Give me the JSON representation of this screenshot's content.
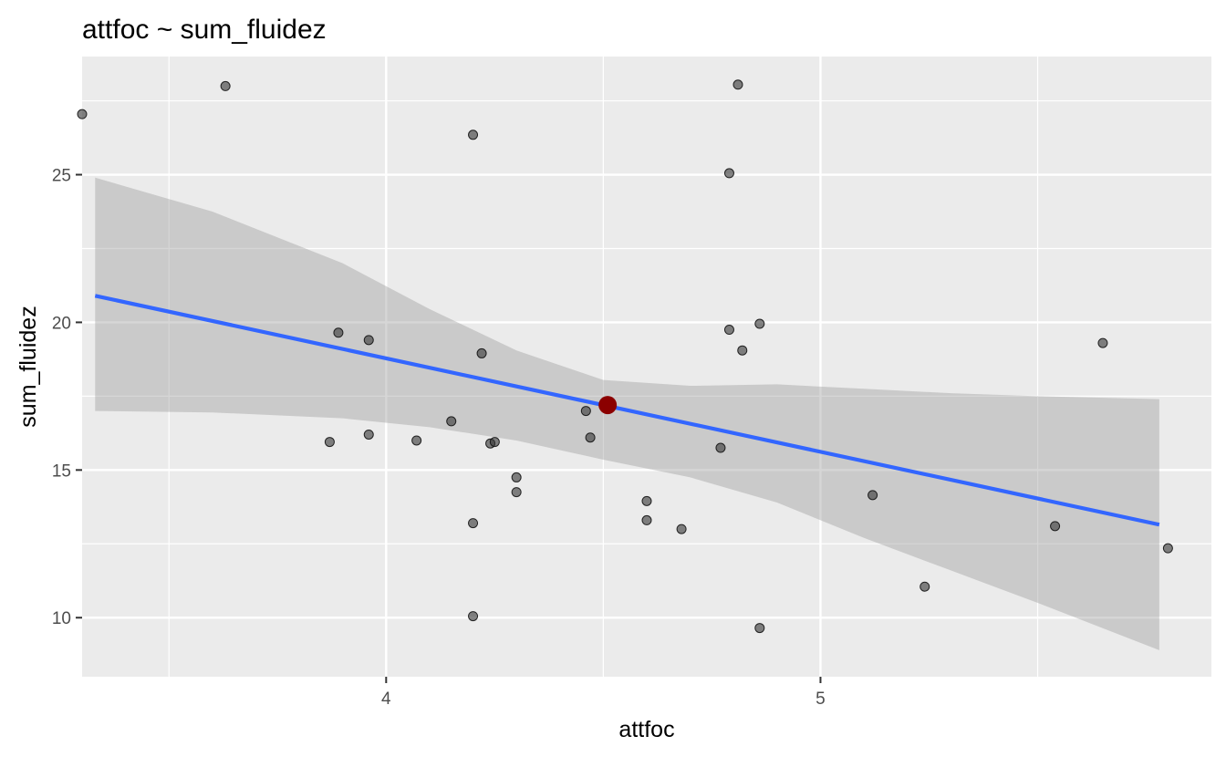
{
  "chart_data": {
    "type": "scatter",
    "title": "attfoc ~ sum_fluidez",
    "xlabel": "attfoc",
    "ylabel": "sum_fluidez",
    "xlim": [
      3.3,
      5.9
    ],
    "ylim": [
      8.0,
      29.0
    ],
    "x_ticks": [
      4,
      5
    ],
    "x_tick_labels": [
      "4",
      "5"
    ],
    "x_minor_ticks": [
      3.5,
      4.5,
      5.5
    ],
    "y_ticks": [
      10,
      15,
      20,
      25
    ],
    "y_tick_labels": [
      "10",
      "15",
      "20",
      "25"
    ],
    "y_minor_ticks": [
      12.5,
      17.5,
      22.5,
      27.5
    ],
    "grid": true,
    "background_color": "#ebebeb",
    "point_color": "#333333",
    "point_alpha": 0.6,
    "points": [
      [
        3.3,
        27.05
      ],
      [
        3.63,
        28.0
      ],
      [
        4.2,
        26.35
      ],
      [
        4.81,
        28.05
      ],
      [
        4.79,
        25.05
      ],
      [
        3.89,
        19.65
      ],
      [
        3.96,
        19.4
      ],
      [
        4.22,
        18.95
      ],
      [
        4.79,
        19.75
      ],
      [
        4.86,
        19.95
      ],
      [
        4.82,
        19.05
      ],
      [
        5.65,
        19.3
      ],
      [
        4.15,
        16.65
      ],
      [
        4.46,
        17.0
      ],
      [
        4.47,
        16.1
      ],
      [
        3.87,
        15.95
      ],
      [
        3.96,
        16.2
      ],
      [
        4.07,
        16.0
      ],
      [
        4.24,
        15.9
      ],
      [
        4.25,
        15.95
      ],
      [
        4.77,
        15.75
      ],
      [
        4.3,
        14.75
      ],
      [
        4.3,
        14.25
      ],
      [
        4.6,
        13.95
      ],
      [
        4.6,
        13.3
      ],
      [
        4.68,
        13.0
      ],
      [
        4.2,
        13.2
      ],
      [
        5.12,
        14.15
      ],
      [
        5.54,
        13.1
      ],
      [
        5.8,
        12.35
      ],
      [
        5.24,
        11.05
      ],
      [
        4.2,
        10.05
      ],
      [
        4.86,
        9.65
      ]
    ],
    "fit_line": {
      "color": "#3366ff",
      "x": [
        3.33,
        5.78
      ],
      "y": [
        20.9,
        13.15
      ]
    },
    "confidence_band": {
      "color": "#999999",
      "x": [
        3.33,
        3.6,
        3.9,
        4.1,
        4.3,
        4.5,
        4.7,
        4.9,
        5.1,
        5.3,
        5.5,
        5.78
      ],
      "upper": [
        24.9,
        23.75,
        22.0,
        20.45,
        19.05,
        18.05,
        17.85,
        17.9,
        17.75,
        17.6,
        17.5,
        17.4
      ],
      "lower": [
        17.0,
        16.95,
        16.75,
        16.45,
        16.0,
        15.35,
        14.75,
        13.9,
        12.7,
        11.6,
        10.5,
        8.9
      ]
    },
    "highlight_point": {
      "x": 4.51,
      "y": 17.2,
      "color": "#8b0000"
    }
  }
}
